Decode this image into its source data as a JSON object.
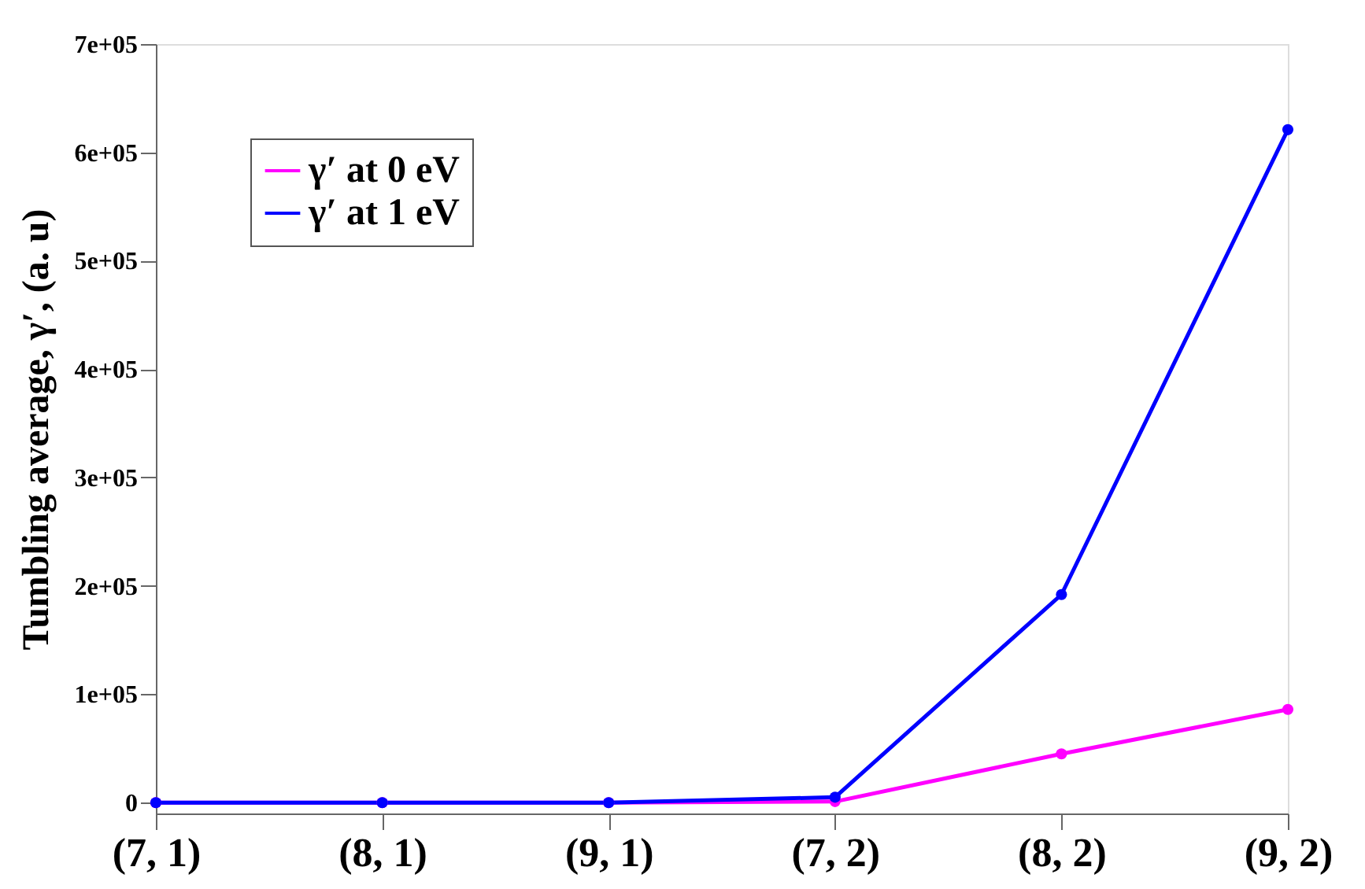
{
  "chart_data": {
    "type": "line",
    "ylabel": "Tumbling average, γ′,  (a. u)",
    "categories": [
      "(7, 1)",
      "(8, 1)",
      "(9, 1)",
      "(7, 2)",
      "(8, 2)",
      "(9, 2)"
    ],
    "series": [
      {
        "name": "γ′ at 0 eV",
        "color": "#ff00ff",
        "values": [
          0,
          0,
          0,
          1000,
          45000,
          86000
        ]
      },
      {
        "name": "γ′ at 1 eV",
        "color": "#0000ff",
        "values": [
          0,
          0,
          0,
          5000,
          192000,
          621000
        ]
      }
    ],
    "ylim": [
      -10000,
      700000
    ],
    "yticks": [
      0,
      {
        "value": 100000,
        "label": "1e+05"
      },
      {
        "value": 200000,
        "label": "2e+05"
      },
      {
        "value": 300000,
        "label": "3e+05"
      },
      {
        "value": 400000,
        "label": "4e+05"
      },
      {
        "value": 500000,
        "label": "5e+05"
      },
      {
        "value": 600000,
        "label": "6e+05"
      },
      {
        "value": 700000,
        "label": "7e+05"
      }
    ],
    "grid": false,
    "legend": "top left",
    "marker": "circle",
    "line_style": "solid"
  }
}
